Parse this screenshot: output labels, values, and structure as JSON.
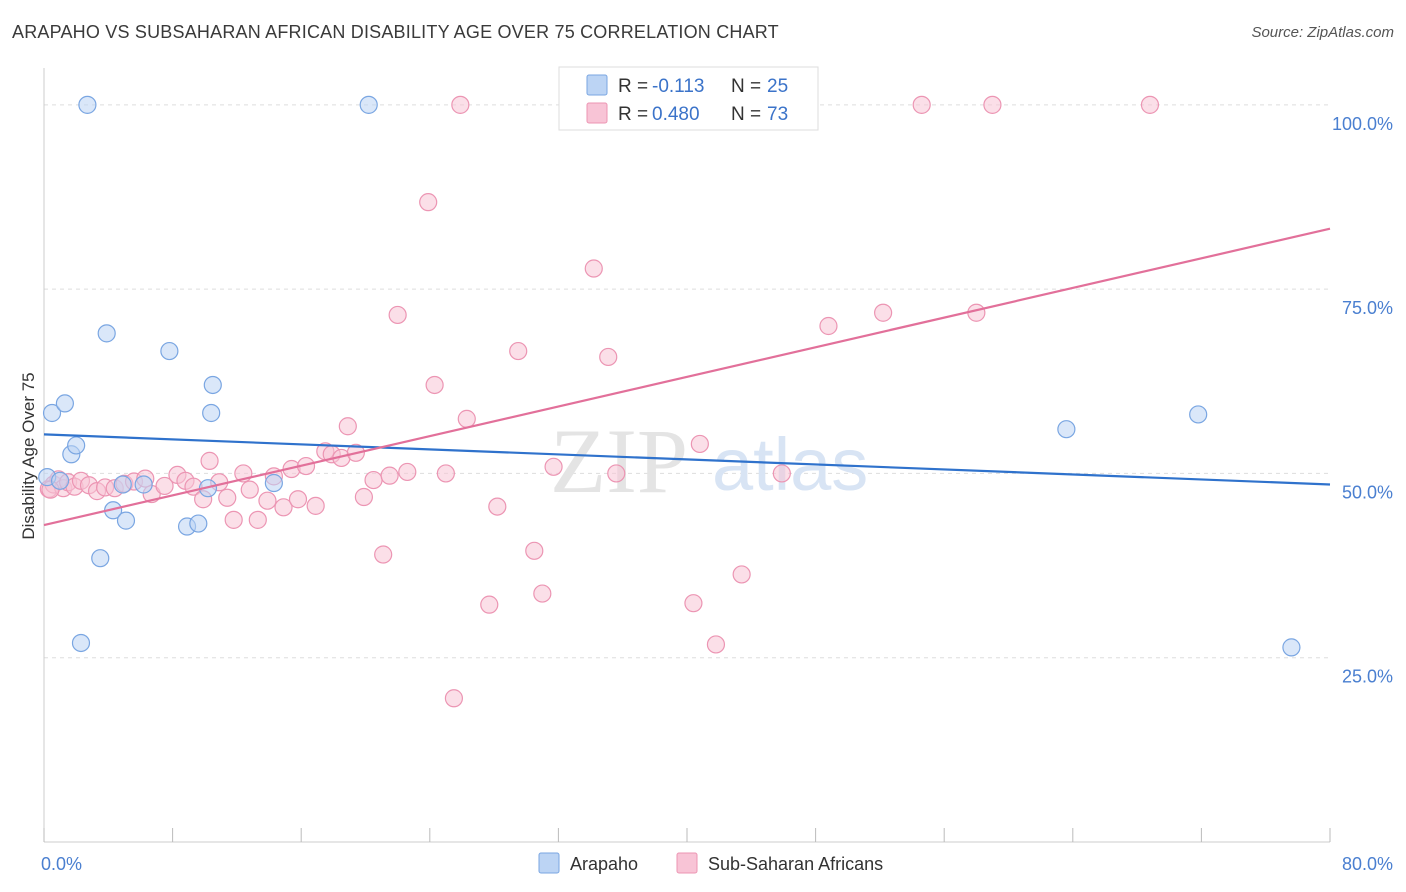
{
  "header": {
    "title": "ARAPAHO VS SUBSAHARAN AFRICAN DISABILITY AGE OVER 75 CORRELATION CHART",
    "source": "Source: ZipAtlas.com"
  },
  "watermark": {
    "zip": "ZIP",
    "atlas": "atlas"
  },
  "legend_box": {
    "rows": [
      {
        "r_label": "R =",
        "r_value": "-0.113",
        "n_label": "N =",
        "n_value": "25"
      },
      {
        "r_label": "R =",
        "r_value": "0.480",
        "n_label": "N =",
        "n_value": "73"
      }
    ]
  },
  "bottom_legend": [
    {
      "label": "Arapaho"
    },
    {
      "label": "Sub-Saharan Africans"
    }
  ],
  "colors": {
    "arapaho_fill": "#bcd4f4",
    "arapaho_stroke": "#7aa6e2",
    "arapaho_line": "#2f72cc",
    "ssa_fill": "#f8c4d6",
    "ssa_stroke": "#ec95b3",
    "ssa_line": "#e2709a",
    "axis_text": "#4a7fd0"
  },
  "chart_data": {
    "type": "scatter",
    "title": "ARAPAHO VS SUBSAHARAN AFRICAN DISABILITY AGE OVER 75 CORRELATION CHART",
    "xlabel": "",
    "ylabel": "Disability Age Over 75",
    "xlim": [
      0,
      80
    ],
    "ylim": [
      0,
      105
    ],
    "x_tick_labels": [
      {
        "value": 0,
        "label": "0.0%"
      },
      {
        "value": 80,
        "label": "80.0%"
      }
    ],
    "y_tick_labels": [
      {
        "value": 25,
        "label": "25.0%"
      },
      {
        "value": 50,
        "label": "50.0%"
      },
      {
        "value": 75,
        "label": "75.0%"
      },
      {
        "value": 100,
        "label": "100.0%"
      }
    ],
    "grid": "horizontal dashed",
    "legend_placement": "top-center",
    "series": [
      {
        "name": "Arapaho",
        "r": -0.113,
        "n": 25,
        "trend": {
          "x": [
            0,
            80
          ],
          "y": [
            55.3,
            48.5
          ]
        },
        "points": [
          {
            "x": 0.2,
            "y": 49.5
          },
          {
            "x": 0.5,
            "y": 58.2
          },
          {
            "x": 1.3,
            "y": 59.5
          },
          {
            "x": 1.7,
            "y": 52.6
          },
          {
            "x": 2.0,
            "y": 53.8
          },
          {
            "x": 2.3,
            "y": 27.0
          },
          {
            "x": 2.7,
            "y": 100.0
          },
          {
            "x": 3.5,
            "y": 38.5
          },
          {
            "x": 3.9,
            "y": 69.0
          },
          {
            "x": 4.3,
            "y": 45.0
          },
          {
            "x": 4.9,
            "y": 48.5
          },
          {
            "x": 5.1,
            "y": 43.6
          },
          {
            "x": 6.2,
            "y": 48.5
          },
          {
            "x": 7.8,
            "y": 66.6
          },
          {
            "x": 8.9,
            "y": 42.8
          },
          {
            "x": 9.6,
            "y": 43.2
          },
          {
            "x": 10.2,
            "y": 48.0
          },
          {
            "x": 10.4,
            "y": 58.2
          },
          {
            "x": 10.5,
            "y": 62.0
          },
          {
            "x": 14.3,
            "y": 48.7
          },
          {
            "x": 20.2,
            "y": 100.0
          },
          {
            "x": 63.6,
            "y": 56.0
          },
          {
            "x": 71.8,
            "y": 58.0
          },
          {
            "x": 77.6,
            "y": 26.4
          },
          {
            "x": 1.0,
            "y": 49.0
          }
        ]
      },
      {
        "name": "Sub-Saharan Africans",
        "r": 0.48,
        "n": 73,
        "trend": {
          "x": [
            0,
            80
          ],
          "y": [
            43.0,
            83.2
          ]
        },
        "points": [
          {
            "x": 0.3,
            "y": 47.9
          },
          {
            "x": 0.6,
            "y": 48.5
          },
          {
            "x": 0.9,
            "y": 49.2
          },
          {
            "x": 1.2,
            "y": 48.0
          },
          {
            "x": 1.5,
            "y": 48.8
          },
          {
            "x": 1.9,
            "y": 48.2
          },
          {
            "x": 2.3,
            "y": 49.0
          },
          {
            "x": 2.8,
            "y": 48.4
          },
          {
            "x": 3.3,
            "y": 47.6
          },
          {
            "x": 3.8,
            "y": 48.1
          },
          {
            "x": 4.4,
            "y": 48.0
          },
          {
            "x": 5.0,
            "y": 48.6
          },
          {
            "x": 5.6,
            "y": 48.9
          },
          {
            "x": 6.3,
            "y": 49.3
          },
          {
            "x": 6.7,
            "y": 47.2
          },
          {
            "x": 7.5,
            "y": 48.3
          },
          {
            "x": 8.3,
            "y": 49.8
          },
          {
            "x": 8.8,
            "y": 49.0
          },
          {
            "x": 9.3,
            "y": 48.2
          },
          {
            "x": 9.9,
            "y": 46.5
          },
          {
            "x": 10.3,
            "y": 51.7
          },
          {
            "x": 10.9,
            "y": 48.8
          },
          {
            "x": 11.4,
            "y": 46.7
          },
          {
            "x": 11.8,
            "y": 43.7
          },
          {
            "x": 12.4,
            "y": 50.0
          },
          {
            "x": 12.8,
            "y": 47.8
          },
          {
            "x": 13.3,
            "y": 43.7
          },
          {
            "x": 13.9,
            "y": 46.3
          },
          {
            "x": 14.3,
            "y": 49.6
          },
          {
            "x": 14.9,
            "y": 45.4
          },
          {
            "x": 15.4,
            "y": 50.6
          },
          {
            "x": 15.8,
            "y": 46.5
          },
          {
            "x": 16.3,
            "y": 51.0
          },
          {
            "x": 16.9,
            "y": 45.6
          },
          {
            "x": 17.5,
            "y": 53.0
          },
          {
            "x": 17.9,
            "y": 52.6
          },
          {
            "x": 18.5,
            "y": 52.1
          },
          {
            "x": 18.9,
            "y": 56.4
          },
          {
            "x": 19.4,
            "y": 52.8
          },
          {
            "x": 19.9,
            "y": 46.8
          },
          {
            "x": 20.5,
            "y": 49.1
          },
          {
            "x": 21.1,
            "y": 39.0
          },
          {
            "x": 21.5,
            "y": 49.7
          },
          {
            "x": 22.0,
            "y": 71.5
          },
          {
            "x": 22.6,
            "y": 50.2
          },
          {
            "x": 23.9,
            "y": 86.8
          },
          {
            "x": 24.3,
            "y": 62.0
          },
          {
            "x": 25.0,
            "y": 50.0
          },
          {
            "x": 25.5,
            "y": 19.5
          },
          {
            "x": 25.9,
            "y": 100.0
          },
          {
            "x": 26.3,
            "y": 57.4
          },
          {
            "x": 27.7,
            "y": 32.2
          },
          {
            "x": 28.2,
            "y": 45.5
          },
          {
            "x": 29.5,
            "y": 66.6
          },
          {
            "x": 30.5,
            "y": 39.5
          },
          {
            "x": 31.0,
            "y": 33.7
          },
          {
            "x": 31.7,
            "y": 50.9
          },
          {
            "x": 33.0,
            "y": 100.0
          },
          {
            "x": 34.2,
            "y": 77.8
          },
          {
            "x": 35.1,
            "y": 65.8
          },
          {
            "x": 35.6,
            "y": 50.0
          },
          {
            "x": 40.4,
            "y": 32.4
          },
          {
            "x": 40.8,
            "y": 54.0
          },
          {
            "x": 41.8,
            "y": 26.8
          },
          {
            "x": 43.4,
            "y": 36.3
          },
          {
            "x": 45.9,
            "y": 50.0
          },
          {
            "x": 48.8,
            "y": 70.0
          },
          {
            "x": 52.2,
            "y": 71.8
          },
          {
            "x": 54.6,
            "y": 100.0
          },
          {
            "x": 58.0,
            "y": 71.8
          },
          {
            "x": 59.0,
            "y": 100.0
          },
          {
            "x": 68.8,
            "y": 100.0
          },
          {
            "x": 0.4,
            "y": 47.8
          }
        ]
      }
    ]
  }
}
